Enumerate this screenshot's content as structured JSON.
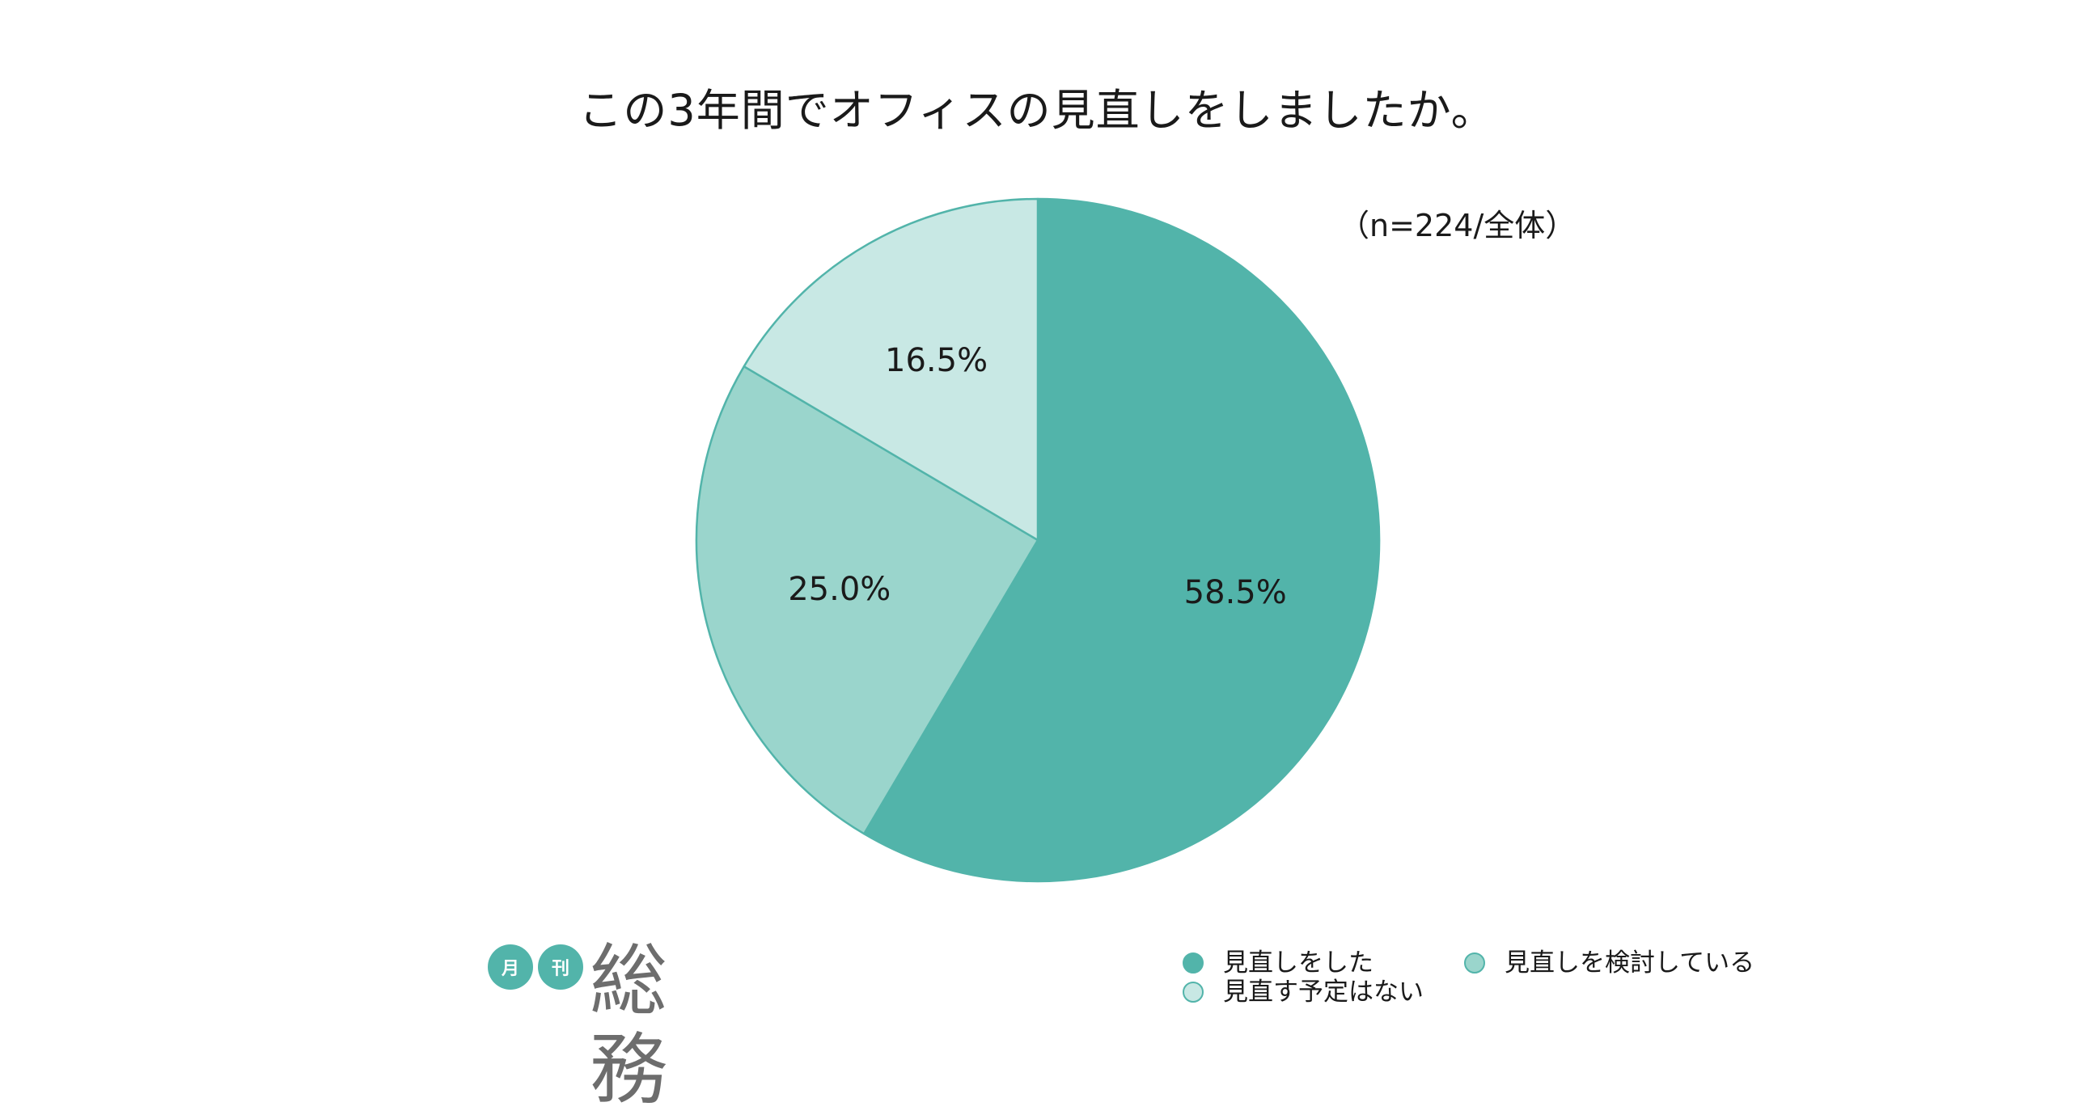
{
  "chart_data": {
    "type": "pie",
    "title": "この3年間でオフィスの見直しをしましたか。",
    "note": "（n=224/全体）",
    "unit": "%",
    "slices": [
      {
        "label": "見直しをした",
        "value": 58.5,
        "display": "58.5%",
        "color": "#52b4aa"
      },
      {
        "label": "見直しを検討している",
        "value": 25.0,
        "display": "25.0%",
        "color": "#9ad5cc"
      },
      {
        "label": "見直す予定はない",
        "value": 16.5,
        "display": "16.5%",
        "color": "#c8e8e4"
      }
    ],
    "start": "12 o'clock",
    "direction": "clockwise",
    "legend_position": "bottom-right"
  },
  "logo": {
    "badge_1": "月",
    "badge_2": "刊",
    "name": "総務"
  }
}
